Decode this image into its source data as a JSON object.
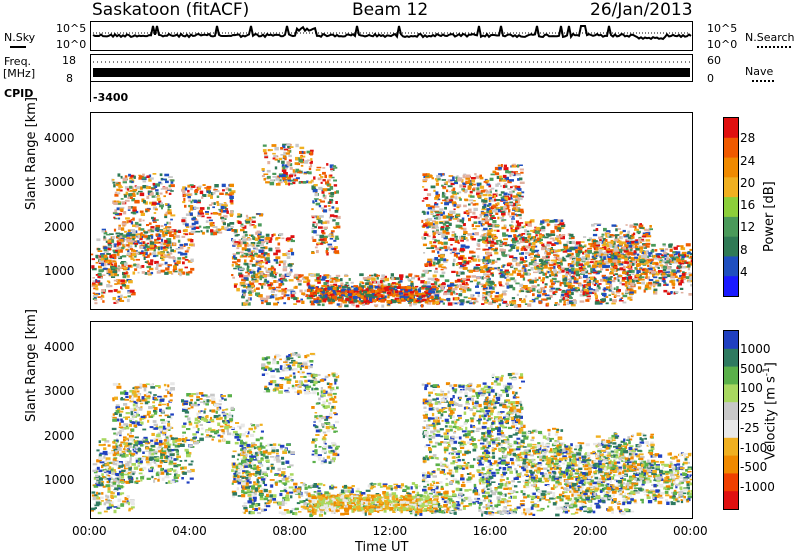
{
  "header": {
    "station": "Saskatoon (fitACF)",
    "beam": "Beam 12",
    "date": "26/Jan/2013"
  },
  "strip_panels": {
    "nsky": {
      "label": "N.Sky",
      "ticks_left": [
        "10^5",
        "10^0"
      ],
      "ticks_right": [
        "10^5",
        "10^0"
      ],
      "right_label": "N.Search"
    },
    "freq": {
      "label_line1": "Freq.",
      "label_line2": "[MHz]",
      "ticks_left": [
        "18",
        "8"
      ],
      "ticks_right": [
        "60",
        "0"
      ],
      "right_label": "Nave"
    },
    "cpid": {
      "label": "CPID",
      "value": "-3400"
    }
  },
  "colors": {
    "power": [
      "#1a1aff",
      "#1f4fbf",
      "#2f7a55",
      "#4a9a5a",
      "#8ccf3a",
      "#f0b020",
      "#f08a00",
      "#f05a00",
      "#e01010"
    ],
    "velocity": [
      "#2040c0",
      "#2e7a60",
      "#5ab04a",
      "#a8d860",
      "#c8c8c8",
      "#e8e8e8",
      "#f0b020",
      "#f08a00",
      "#f04000",
      "#e01010"
    ]
  },
  "chart_data": [
    {
      "type": "heatmap",
      "name": "power",
      "xlabel": "Time UT",
      "ylabel": "Slant Range [km]",
      "x_ticks": [
        "00:00",
        "04:00",
        "08:00",
        "12:00",
        "16:00",
        "20:00",
        "00:00"
      ],
      "y_ticks": [
        4000,
        3000,
        2000,
        1000
      ],
      "ylim": [
        200,
        4600
      ],
      "colorbar_label": "Power [dB]",
      "colorbar_ticks": [
        28,
        24,
        20,
        16,
        12,
        8,
        4
      ],
      "colorbar_range": [
        0,
        32
      ]
    },
    {
      "type": "heatmap",
      "name": "velocity",
      "xlabel": "Time UT",
      "ylabel": "Slant Range [km]",
      "x_ticks": [
        "00:00",
        "04:00",
        "08:00",
        "12:00",
        "16:00",
        "20:00",
        "00:00"
      ],
      "y_ticks": [
        4000,
        3000,
        2000,
        1000
      ],
      "ylim": [
        200,
        4600
      ],
      "colorbar_label": "Velocity [m s^-1]",
      "colorbar_ticks": [
        1000,
        500,
        100,
        25,
        -25,
        -100,
        -500,
        -1000
      ]
    }
  ]
}
